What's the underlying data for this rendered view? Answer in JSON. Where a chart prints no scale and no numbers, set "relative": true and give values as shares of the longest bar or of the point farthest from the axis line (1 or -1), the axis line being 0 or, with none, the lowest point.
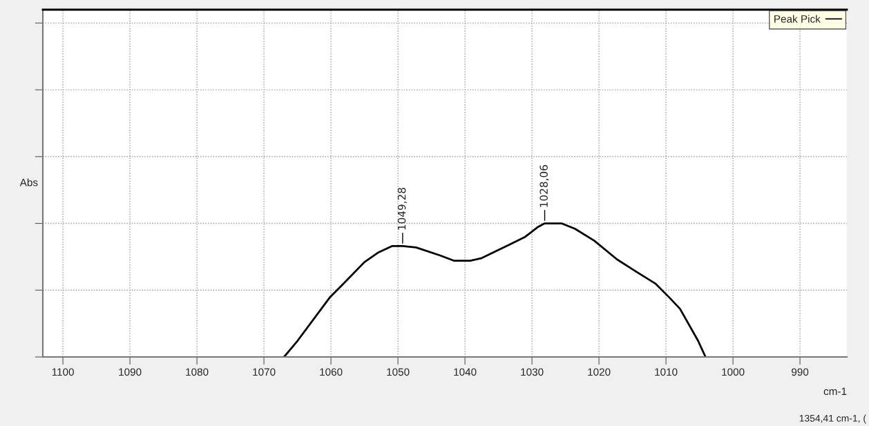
{
  "chart_data": {
    "type": "line",
    "relative": true,
    "xlabel": "cm-1",
    "ylabel": "Abs",
    "x": [
      1067.0,
      1065.0,
      1060.1,
      1058.3,
      1055.0,
      1053.0,
      1050.9,
      1049.3,
      1047.3,
      1043.7,
      1041.6,
      1039.2,
      1037.5,
      1033.4,
      1031.0,
      1029.2,
      1028.1,
      1025.6,
      1023.6,
      1020.7,
      1017.3,
      1014.5,
      1011.6,
      1009.4,
      1007.9,
      1005.2,
      1004.1
    ],
    "series": [
      {
        "name": "Peak Pick",
        "color": "#000000",
        "values": [
          0,
          0.12,
          0.45,
          0.54,
          0.71,
          0.78,
          0.83,
          0.83,
          0.82,
          0.76,
          0.72,
          0.72,
          0.74,
          0.84,
          0.9,
          0.97,
          1.0,
          1.0,
          0.96,
          0.87,
          0.73,
          0.64,
          0.55,
          0.44,
          0.36,
          0.12,
          0
        ]
      }
    ],
    "xlim": [
      1103,
      983
    ],
    "xticks": [
      1100,
      1090,
      1080,
      1070,
      1060,
      1050,
      1040,
      1030,
      1020,
      1010,
      1000,
      990
    ],
    "grid": true,
    "legend": "top right",
    "line_style": "solid",
    "marker": "none",
    "annotations": [
      {
        "text": "1049,28",
        "x": 1049.3,
        "y": 0.83
      },
      {
        "text": "1028,06",
        "x": 1028.1,
        "y": 1.0
      },
      "1354,41 cm-1, ("
    ]
  }
}
